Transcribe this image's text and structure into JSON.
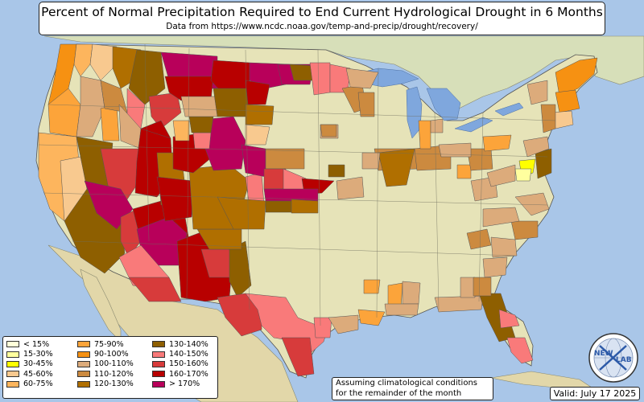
{
  "title": "Percent of Normal Precipitation Required to End Current Hydrological Drought in 6 Months",
  "subtitle": "Data from https://www.ncdc.noaa.gov/temp-and-precip/drought/recovery/",
  "legend": [
    {
      "label": "< 15%",
      "color": "#ffffd9"
    },
    {
      "label": "15-30%",
      "color": "#ffff9e"
    },
    {
      "label": "30-45%",
      "color": "#ffff00"
    },
    {
      "label": "45-60%",
      "color": "#f8c98f"
    },
    {
      "label": "60-75%",
      "color": "#fdb55d"
    },
    {
      "label": "75-90%",
      "color": "#fca43a"
    },
    {
      "label": "90-100%",
      "color": "#f69112"
    },
    {
      "label": "100-110%",
      "color": "#dcab7b"
    },
    {
      "label": "110-120%",
      "color": "#cc8a3f"
    },
    {
      "label": "120-130%",
      "color": "#b06f00"
    },
    {
      "label": "130-140%",
      "color": "#8e5f00"
    },
    {
      "label": "140-150%",
      "color": "#f97a7a"
    },
    {
      "label": "150-160%",
      "color": "#d73b3b"
    },
    {
      "label": "160-170%",
      "color": "#b80000"
    },
    {
      "label": "> 170%",
      "color": "#b8005a"
    }
  ],
  "note": {
    "line1": "Assuming climatological conditions",
    "line2": "for the remainder of the month"
  },
  "valid_date": "Valid: July 17 2025",
  "logo": {
    "text_left": "NEW",
    "text_right": "LAB",
    "icon": "newxlab-globe-logo"
  },
  "colors": {
    "ocean": "#a9c6e8",
    "lakes": "#7fa7dd",
    "land": "#e6e3b8",
    "canada_land": "#d7dfb9",
    "mexico_land": "#e2d7a9"
  }
}
